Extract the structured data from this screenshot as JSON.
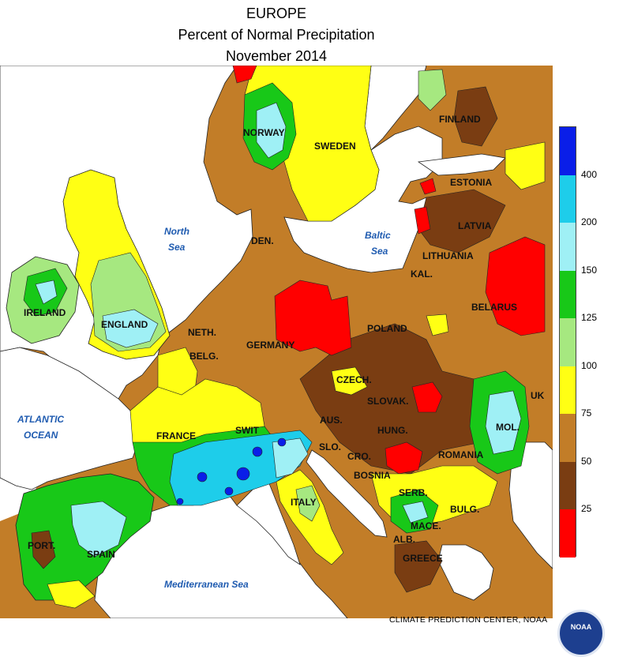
{
  "title": {
    "line1": "EUROPE",
    "line2": "Percent of Normal Precipitation",
    "line3": "November 2014"
  },
  "legend": {
    "ticks": [
      "400",
      "200",
      "150",
      "125",
      "100",
      "75",
      "50",
      "25"
    ],
    "colors": [
      "#ff0000",
      "#7a3d12",
      "#c27d28",
      "#ffff14",
      "#a6e880",
      "#18c818",
      "#9ff0f5",
      "#1ecdea",
      "#0a1ee8"
    ]
  },
  "labels": {
    "countries": {
      "norway": "NORWAY",
      "sweden": "SWEDEN",
      "finland": "FINLAND",
      "estonia": "ESTONIA",
      "latvia": "LATVIA",
      "lithuania": "LITHUANIA",
      "kal": "KAL.",
      "belarus": "BELARUS",
      "den": "DEN.",
      "ireland": "IRELAND",
      "england": "ENGLAND",
      "neth": "NETH.",
      "belg": "BELG.",
      "germany": "GERMANY",
      "poland": "POLAND",
      "czech": "CZECH.",
      "slovak": "SLOVAK.",
      "aus": "AUS.",
      "swit": "SWIT",
      "france": "FRANCE",
      "hung": "HUNG.",
      "mol": "MOL.",
      "romania": "ROMANIA",
      "uk": "UK",
      "slo": "SLO.",
      "cro": "CRO.",
      "bosnia": "BOSNIA",
      "serb": "SERB.",
      "bulg": "BULG.",
      "mace": "MACE.",
      "alb": "ALB.",
      "greece": "GREECE",
      "italy": "ITALY",
      "port": "PORT.",
      "spain": "SPAIN"
    },
    "seas": {
      "north_sea_1": "North",
      "north_sea_2": "Sea",
      "baltic_sea_1": "Baltic",
      "baltic_sea_2": "Sea",
      "atlantic_1": "ATLANTIC",
      "atlantic_2": "OCEAN",
      "mediterranean": "Mediterranean Sea"
    }
  },
  "credit": "CLIMATE PREDICTION CENTER, NOAA",
  "logo_text": "NOAA"
}
